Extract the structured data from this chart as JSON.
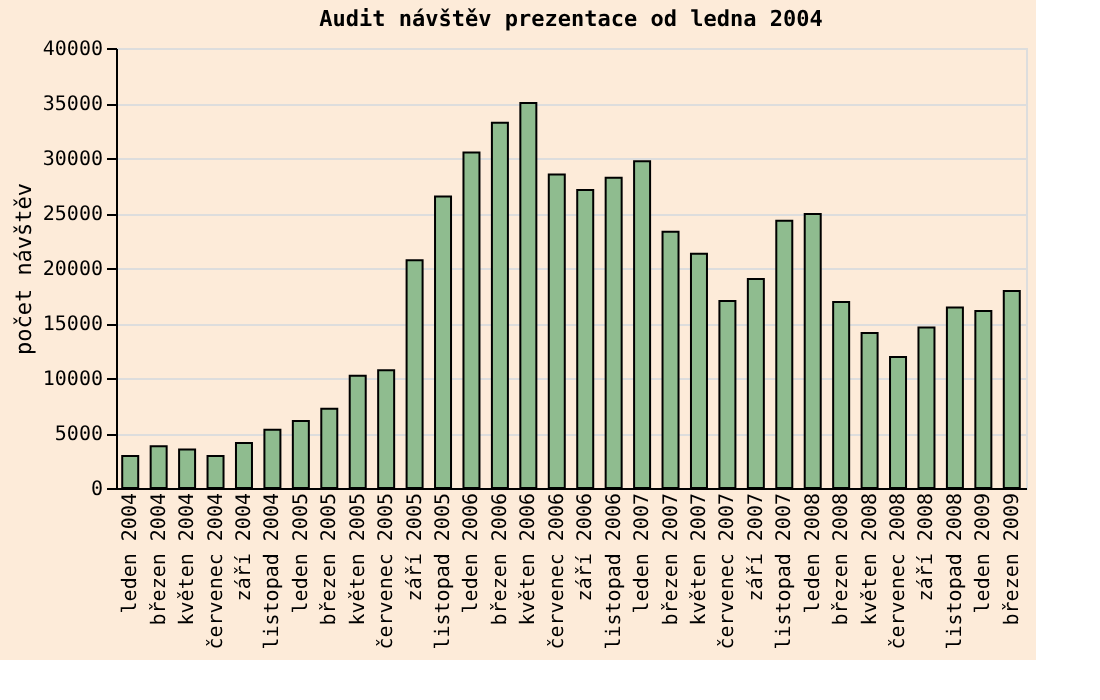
{
  "chart_data": {
    "type": "bar",
    "title": "Audit návštěv prezentace od ledna 2004",
    "ylabel": "počet návštěv",
    "categories": [
      "leden 2004",
      "březen 2004",
      "květen 2004",
      "červenec 2004",
      "září 2004",
      "listopad 2004",
      "leden 2005",
      "březen 2005",
      "květen 2005",
      "červenec 2005",
      "září 2005",
      "listopad 2005",
      "leden 2006",
      "březen 2006",
      "květen 2006",
      "červenec 2006",
      "září 2006",
      "listopad 2006",
      "leden 2007",
      "březen 2007",
      "květen 2007",
      "červenec 2007",
      "září 2007",
      "listopad 2007",
      "leden 2008",
      "březen 2008",
      "květen 2008",
      "červenec 2008",
      "září 2008",
      "listopad 2008",
      "leden 2009",
      "březen 2009"
    ],
    "values": [
      2900,
      3800,
      3500,
      2900,
      4100,
      5300,
      6100,
      7200,
      10200,
      10700,
      20700,
      26500,
      30500,
      33200,
      35000,
      28500,
      27100,
      28200,
      29700,
      23300,
      21300,
      17000,
      19000,
      24300,
      24900,
      16900,
      14100,
      11900,
      14600,
      16400,
      16100,
      17900
    ],
    "color": "#8fbc8f",
    "ylim": [
      0,
      40000
    ],
    "yticks": [
      0,
      5000,
      10000,
      15000,
      20000,
      25000,
      30000,
      35000,
      40000
    ],
    "grid": "y"
  }
}
